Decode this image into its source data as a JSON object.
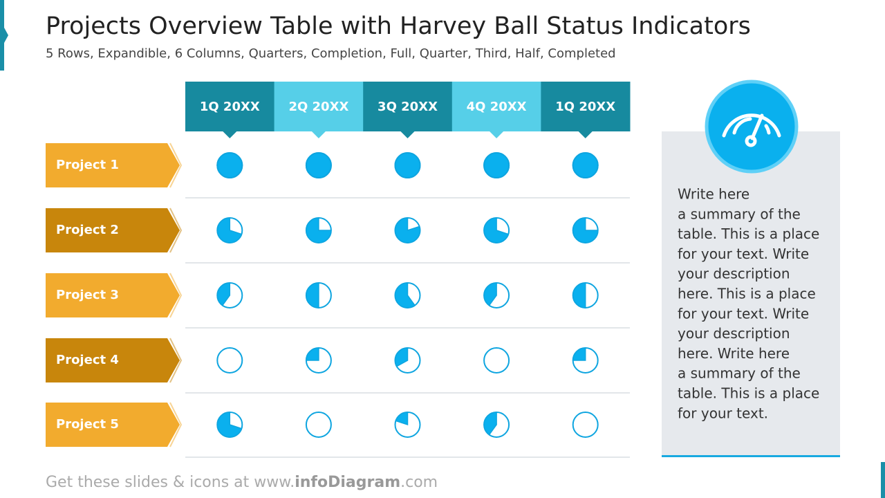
{
  "header": {
    "title": "Projects Overview Table with Harvey Ball Status Indicators",
    "subtitle": "5 Rows, Expandible, 6 Columns, Quarters, Completion, Full, Quarter, Third, Half, Completed"
  },
  "table": {
    "columns": [
      "1Q 20XX",
      "2Q 20XX",
      "3Q 20XX",
      "4Q 20XX",
      "1Q 20XX"
    ],
    "rows": [
      {
        "label": "Project 1",
        "values": [
          1,
          1,
          1,
          1,
          1
        ]
      },
      {
        "label": "Project 2",
        "values": [
          0.7,
          0.75,
          0.8,
          0.7,
          0.75
        ]
      },
      {
        "label": "Project 3",
        "values": [
          0.4,
          0.5,
          0.6,
          0.4,
          0.5
        ]
      },
      {
        "label": "Project 4",
        "values": [
          0,
          0.25,
          0.33,
          0,
          0.25
        ]
      },
      {
        "label": "Project 5",
        "values": [
          0.7,
          0,
          0.2,
          0.4,
          0
        ]
      }
    ]
  },
  "summary": {
    "lines": [
      "Write here",
      "a summary of the",
      "table. This is a place",
      "for your text. Write",
      "your description",
      "here. This is a place",
      "for your text. Write",
      "your description",
      "here. Write here",
      "a summary of the",
      "table. This is a place",
      "for your text."
    ]
  },
  "footer": {
    "prefix": "Get these slides & icons at www.",
    "brand": "infoDiagram",
    "suffix": ".com"
  }
}
